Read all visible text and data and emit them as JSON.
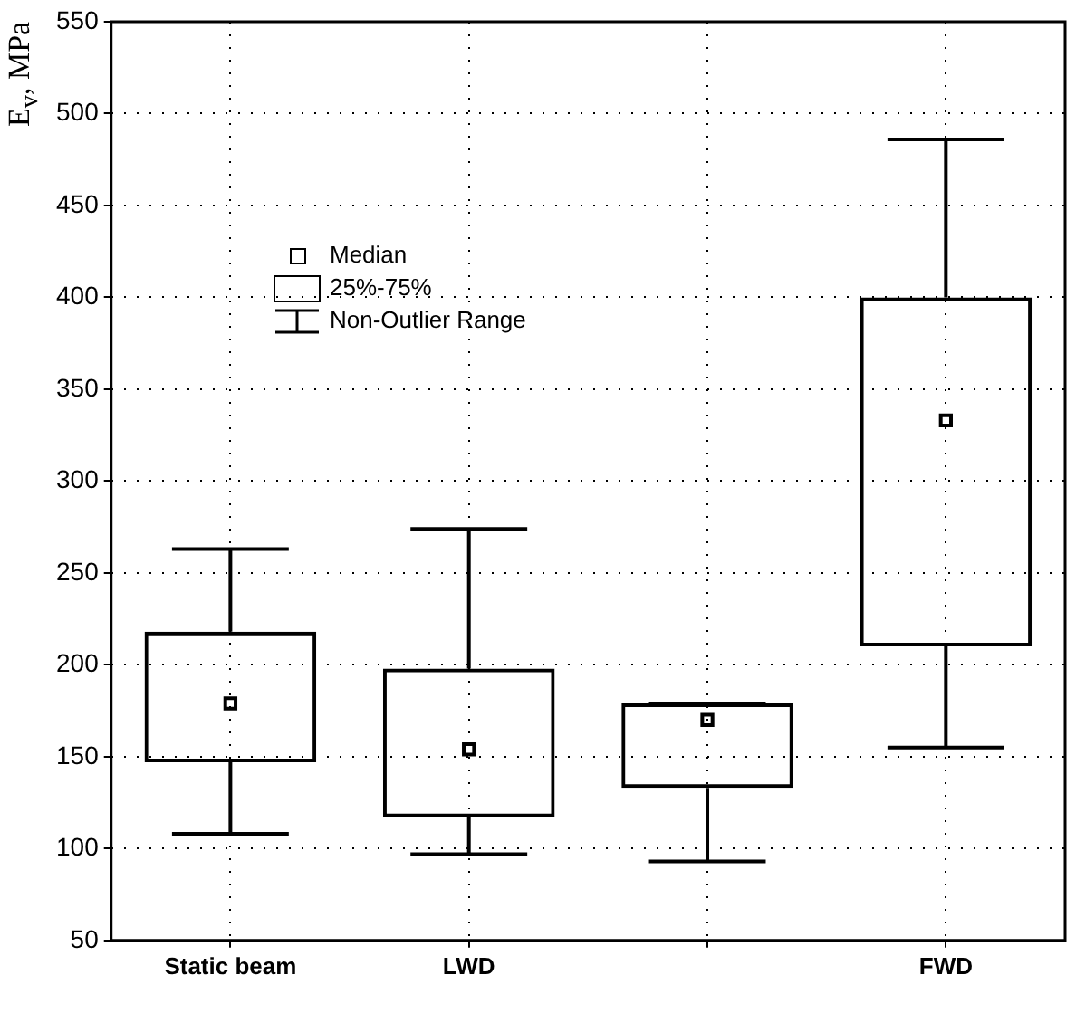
{
  "chart_data": {
    "type": "box",
    "ylabel": "E$_{v}$, MPa",
    "categories": [
      "Static beam",
      "LWD",
      null,
      "FWD"
    ],
    "boxes": [
      {
        "low": 108,
        "q1": 147,
        "median": 179,
        "q3": 218,
        "high": 263
      },
      {
        "low": 97,
        "q1": 117,
        "median": 154,
        "q3": 198,
        "high": 274
      },
      {
        "low": 93,
        "q1": 133,
        "median": 170,
        "q3": 179,
        "high": 179
      },
      {
        "low": 155,
        "q1": 210,
        "median": 333,
        "q3": 400,
        "high": 486
      }
    ],
    "color": "#000000",
    "ylim": [
      50,
      550
    ],
    "yticks": [
      50,
      100,
      150,
      200,
      250,
      300,
      350,
      400,
      450,
      500,
      550
    ],
    "grid": true,
    "marker": "square",
    "annotations": [
      "Median",
      "25%-75%",
      "Non-Outlier Range"
    ]
  }
}
